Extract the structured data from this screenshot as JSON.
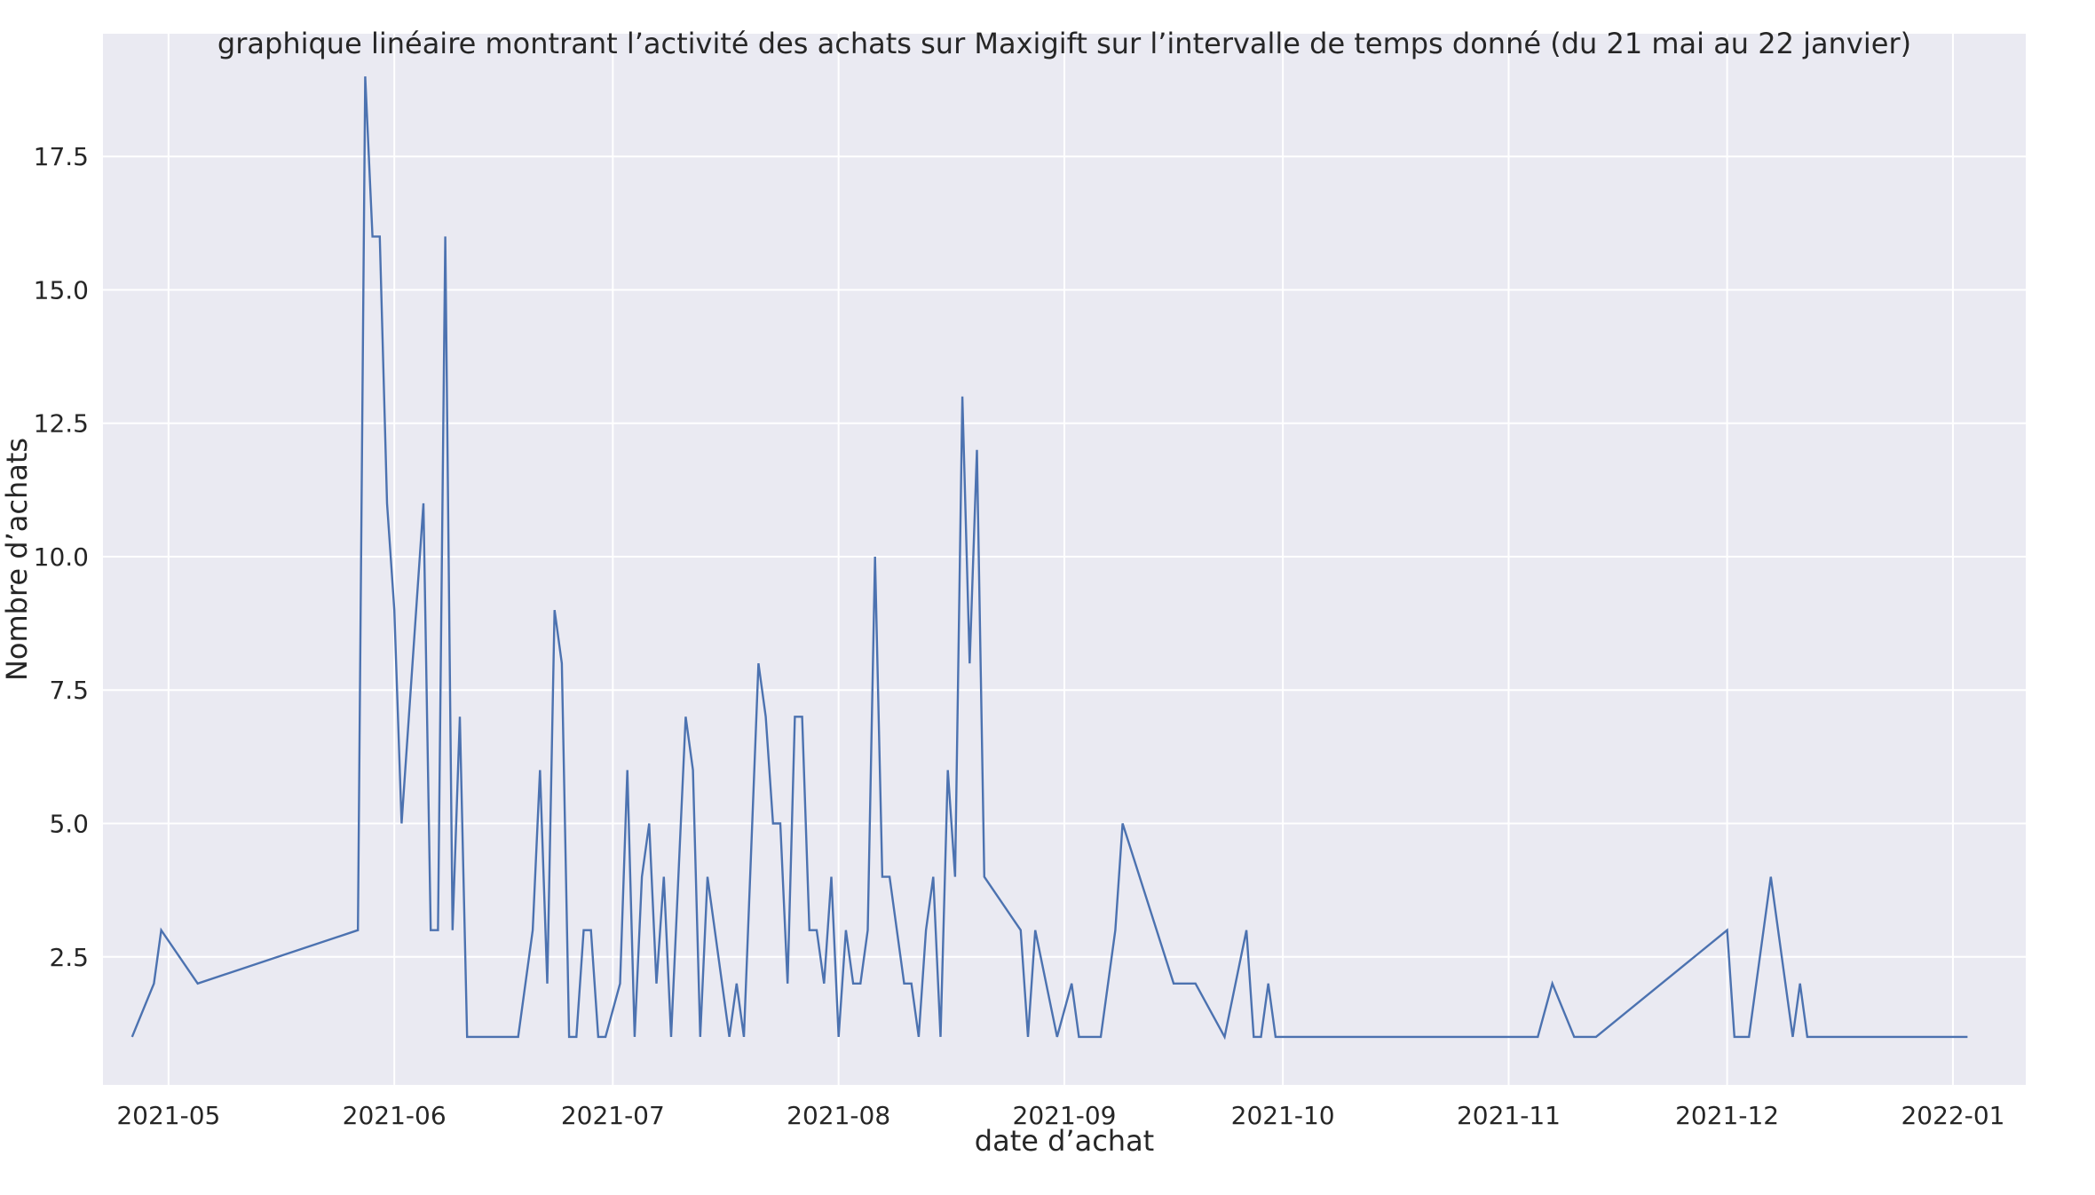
{
  "chart_data": {
    "type": "line",
    "title": "graphique linéaire montrant l’activité des achats sur Maxigift sur l’intervalle de temps donné (du 21 mai au 22 janvier)",
    "xlabel": "date d’achat",
    "ylabel": "Nombre d’achats",
    "x_range": [
      "2021-04-22",
      "2022-01-11"
    ],
    "ylim": [
      0.1,
      19.8
    ],
    "grid": true,
    "legend": "none",
    "line_color": "#4c72b0",
    "background_color": "#eaeaf2",
    "grid_color": "#ffffff",
    "x_ticks": [
      {
        "date": "2021-05-01",
        "label": "2021-05"
      },
      {
        "date": "2021-06-01",
        "label": "2021-06"
      },
      {
        "date": "2021-07-01",
        "label": "2021-07"
      },
      {
        "date": "2021-08-01",
        "label": "2021-08"
      },
      {
        "date": "2021-09-01",
        "label": "2021-09"
      },
      {
        "date": "2021-10-01",
        "label": "2021-10"
      },
      {
        "date": "2021-11-01",
        "label": "2021-11"
      },
      {
        "date": "2021-12-01",
        "label": "2021-12"
      },
      {
        "date": "2022-01-01",
        "label": "2022-01"
      }
    ],
    "y_ticks": [
      {
        "value": 2.5,
        "label": "2.5"
      },
      {
        "value": 5,
        "label": "5.0"
      },
      {
        "value": 7.5,
        "label": "7.5"
      },
      {
        "value": 10,
        "label": "10.0"
      },
      {
        "value": 12.5,
        "label": "12.5"
      },
      {
        "value": 15,
        "label": "15.0"
      },
      {
        "value": 17.5,
        "label": "17.5"
      }
    ],
    "series": [
      {
        "x": [
          "2021-04-26",
          "2021-04-29",
          "2021-04-30",
          "2021-05-05",
          "2021-05-27",
          "2021-05-28",
          "2021-05-29",
          "2021-05-30",
          "2021-05-31",
          "2021-06-01",
          "2021-06-02",
          "2021-06-05",
          "2021-06-06",
          "2021-06-07",
          "2021-06-08",
          "2021-06-09",
          "2021-06-10",
          "2021-06-11",
          "2021-06-12",
          "2021-06-18",
          "2021-06-20",
          "2021-06-21",
          "2021-06-22",
          "2021-06-23",
          "2021-06-24",
          "2021-06-25",
          "2021-06-26",
          "2021-06-27",
          "2021-06-28",
          "2021-06-29",
          "2021-06-30",
          "2021-07-02",
          "2021-07-03",
          "2021-07-04",
          "2021-07-05",
          "2021-07-06",
          "2021-07-07",
          "2021-07-08",
          "2021-07-09",
          "2021-07-11",
          "2021-07-12",
          "2021-07-13",
          "2021-07-14",
          "2021-07-17",
          "2021-07-18",
          "2021-07-19",
          "2021-07-21",
          "2021-07-22",
          "2021-07-23",
          "2021-07-24",
          "2021-07-25",
          "2021-07-26",
          "2021-07-27",
          "2021-07-28",
          "2021-07-29",
          "2021-07-30",
          "2021-07-31",
          "2021-08-01",
          "2021-08-02",
          "2021-08-03",
          "2021-08-04",
          "2021-08-05",
          "2021-08-06",
          "2021-08-07",
          "2021-08-08",
          "2021-08-10",
          "2021-08-11",
          "2021-08-12",
          "2021-08-13",
          "2021-08-14",
          "2021-08-15",
          "2021-08-16",
          "2021-08-17",
          "2021-08-18",
          "2021-08-19",
          "2021-08-20",
          "2021-08-21",
          "2021-08-26",
          "2021-08-27",
          "2021-08-28",
          "2021-08-31",
          "2021-09-02",
          "2021-09-03",
          "2021-09-06",
          "2021-09-08",
          "2021-09-09",
          "2021-09-16",
          "2021-09-19",
          "2021-09-23",
          "2021-09-26",
          "2021-09-27",
          "2021-09-28",
          "2021-09-29",
          "2021-09-30",
          "2021-11-05",
          "2021-11-07",
          "2021-11-10",
          "2021-11-13",
          "2021-12-01",
          "2021-12-02",
          "2021-12-04",
          "2021-12-07",
          "2021-12-10",
          "2021-12-11",
          "2021-12-12",
          "2022-01-03"
        ],
        "y": [
          1,
          2,
          3,
          2,
          3,
          19,
          16,
          16,
          11,
          9,
          5,
          11,
          3,
          3,
          16,
          3,
          7,
          1,
          1,
          1,
          3,
          6,
          2,
          9,
          8,
          1,
          1,
          3,
          3,
          1,
          1,
          2,
          6,
          1,
          4,
          5,
          2,
          4,
          1,
          7,
          6,
          1,
          4,
          1,
          2,
          1,
          8,
          7,
          5,
          5,
          2,
          7,
          7,
          3,
          3,
          2,
          4,
          1,
          3,
          2,
          2,
          3,
          10,
          4,
          4,
          2,
          2,
          1,
          3,
          4,
          1,
          6,
          4,
          13,
          8,
          12,
          4,
          3,
          1,
          3,
          1,
          2,
          1,
          1,
          3,
          5,
          2,
          2,
          1,
          3,
          1,
          1,
          2,
          1,
          1,
          2,
          1,
          1,
          3,
          1,
          1,
          4,
          1,
          2,
          1,
          1
        ]
      }
    ]
  }
}
